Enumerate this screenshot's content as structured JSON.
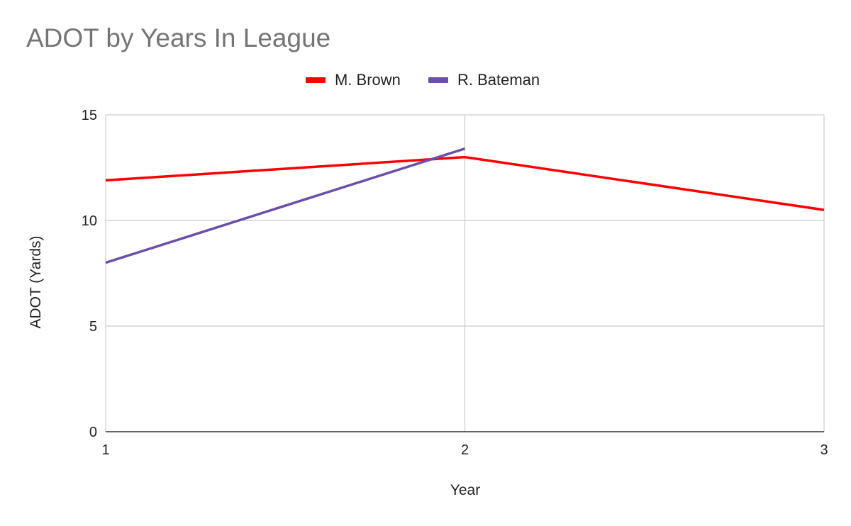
{
  "chart_data": {
    "type": "line",
    "title": "ADOT by Years In League",
    "xlabel": "Year",
    "ylabel": "ADOT (Yards)",
    "x": [
      1,
      2,
      3
    ],
    "xticks": [
      "1",
      "2",
      "3"
    ],
    "yticks": [
      "0",
      "5",
      "10",
      "15"
    ],
    "ylim": [
      0,
      15
    ],
    "xlim": [
      1,
      3
    ],
    "grid": true,
    "legend_position": "top-center",
    "series": [
      {
        "name": "M. Brown",
        "color": "#ff0000",
        "values": [
          11.9,
          13.0,
          10.5
        ]
      },
      {
        "name": "R. Bateman",
        "color": "#6b4fa8",
        "values": [
          8.0,
          13.4,
          null
        ]
      }
    ]
  }
}
